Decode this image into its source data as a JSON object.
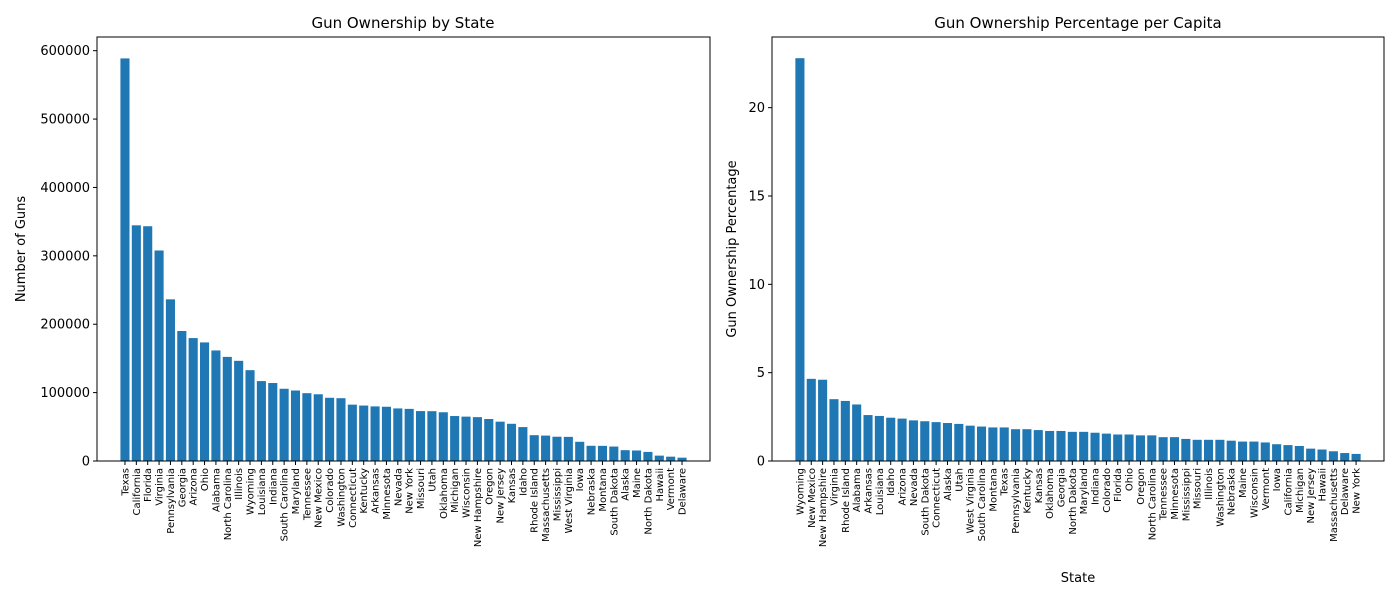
{
  "chart_data": [
    {
      "type": "bar",
      "title": "Gun Ownership by State",
      "xlabel": "",
      "ylabel": "Number of Guns",
      "ylim": [
        0,
        620000
      ],
      "yticks": [
        0,
        100000,
        200000,
        300000,
        400000,
        500000,
        600000
      ],
      "color": "#1f77b4",
      "grid": false,
      "categories": [
        "Texas",
        "California",
        "Florida",
        "Virginia",
        "Pennsylvania",
        "Georgia",
        "Arizona",
        "Ohio",
        "Alabama",
        "North Carolina",
        "Illinois",
        "Wyoming",
        "Louisiana",
        "Indiana",
        "South Carolina",
        "Maryland",
        "Tennessee",
        "New Mexico",
        "Colorado",
        "Washington",
        "Connecticut",
        "Kentucky",
        "Arkansas",
        "Minnesota",
        "Nevada",
        "New York",
        "Missouri",
        "Utah",
        "Oklahoma",
        "Michigan",
        "Wisconsin",
        "New Hampshire",
        "Oregon",
        "New Jersey",
        "Kansas",
        "Idaho",
        "Rhode Island",
        "Massachusetts",
        "Mississippi",
        "West Virginia",
        "Iowa",
        "Nebraska",
        "Montana",
        "South Dakota",
        "Alaska",
        "Maine",
        "North Dakota",
        "Hawaii",
        "Vermont",
        "Delaware"
      ],
      "values": [
        588696,
        344622,
        343288,
        307822,
        236377,
        190050,
        179738,
        173405,
        161641,
        152238,
        146487,
        132806,
        116831,
        114019,
        105601,
        103109,
        99159,
        97580,
        92435,
        91835,
        82400,
        81068,
        79841,
        79307,
        76888,
        76207,
        72996,
        72856,
        71269,
        65742,
        64878,
        64135,
        61383,
        57507,
        54409,
        49566,
        37736,
        37152,
        35494,
        35264,
        28079,
        22234,
        22133,
        21130,
        15824,
        15371,
        13272,
        7859,
        6337,
        4852
      ]
    },
    {
      "type": "bar",
      "title": "Gun Ownership Percentage per Capita",
      "xlabel": "State",
      "ylabel": "Gun Ownership Percentage",
      "ylim": [
        0,
        24
      ],
      "yticks": [
        0,
        5,
        10,
        15,
        20
      ],
      "color": "#1f77b4",
      "grid": false,
      "categories": [
        "Wyoming",
        "New Mexico",
        "New Hampshire",
        "Virginia",
        "Rhode Island",
        "Alabama",
        "Arkansas",
        "Louisiana",
        "Idaho",
        "Arizona",
        "Nevada",
        "South Dakota",
        "Connecticut",
        "Alaska",
        "Utah",
        "West Virginia",
        "South Carolina",
        "Montana",
        "Texas",
        "Pennsylvania",
        "Kentucky",
        "Kansas",
        "Oklahoma",
        "Georgia",
        "North Dakota",
        "Maryland",
        "Indiana",
        "Colorado",
        "Florida",
        "Ohio",
        "Oregon",
        "North Carolina",
        "Tennessee",
        "Minnesota",
        "Mississippi",
        "Missouri",
        "Illinois",
        "Washington",
        "Nebraska",
        "Maine",
        "Wisconsin",
        "Vermont",
        "Iowa",
        "California",
        "Michigan",
        "New Jersey",
        "Hawaii",
        "Massachusetts",
        "Delaware",
        "New York"
      ],
      "values": [
        22.8,
        4.65,
        4.6,
        3.5,
        3.4,
        3.2,
        2.6,
        2.55,
        2.45,
        2.4,
        2.3,
        2.25,
        2.2,
        2.15,
        2.1,
        2.0,
        1.95,
        1.9,
        1.9,
        1.8,
        1.8,
        1.75,
        1.7,
        1.7,
        1.65,
        1.65,
        1.6,
        1.55,
        1.5,
        1.5,
        1.45,
        1.45,
        1.35,
        1.35,
        1.25,
        1.2,
        1.2,
        1.2,
        1.15,
        1.1,
        1.1,
        1.05,
        0.95,
        0.9,
        0.85,
        0.7,
        0.65,
        0.55,
        0.45,
        0.4
      ]
    }
  ]
}
